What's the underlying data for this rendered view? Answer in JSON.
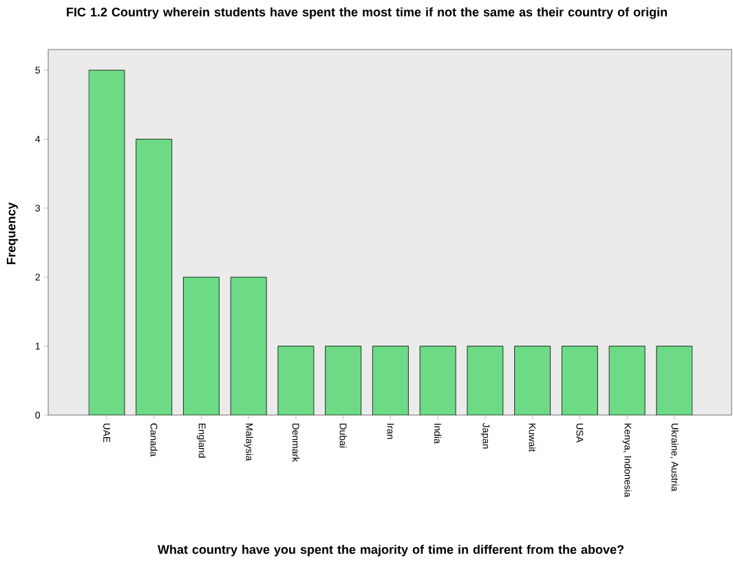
{
  "chart_data": {
    "type": "bar",
    "title": "FIC 1.2 Country wherein students have spent the most time if not the same as their country of origin",
    "xlabel": "What country have you spent the majority of time in different from the above?",
    "ylabel": "Frequency",
    "categories": [
      "UAE",
      "Canada",
      "England",
      "Malaysia",
      "Denmark",
      "Dubai",
      "Iran",
      "India",
      "Japan",
      "Kuwait",
      "USA",
      "Kenya, Indonesia",
      "Ukraine, Austria"
    ],
    "values": [
      5,
      4,
      2,
      2,
      1,
      1,
      1,
      1,
      1,
      1,
      1,
      1,
      1
    ],
    "color": "#6ddb86",
    "ylim": [
      0,
      5.3
    ],
    "yticks": [
      0,
      1,
      2,
      3,
      4,
      5
    ]
  }
}
